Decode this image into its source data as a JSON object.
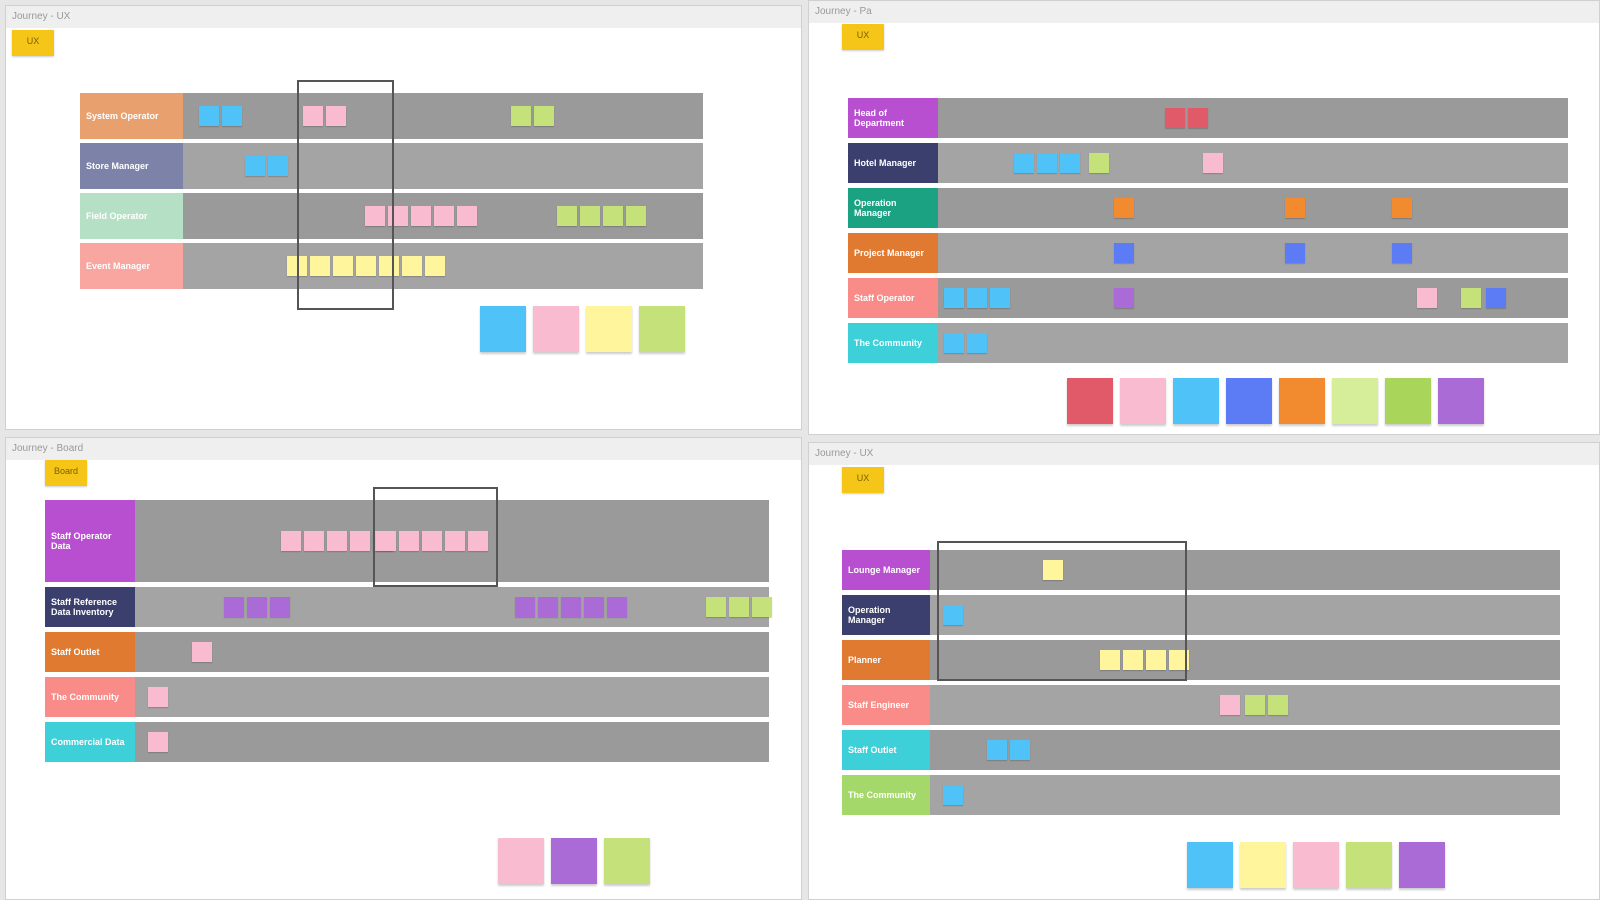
{
  "boards": [
    {
      "title": "Journey - UX",
      "tag": "UX",
      "lanes": [
        {
          "label": "System Operator",
          "color": "#e8a06e"
        },
        {
          "label": "Store Manager",
          "color": "#7c82a8"
        },
        {
          "label": "Field Operator",
          "color": "#b6e0c6"
        },
        {
          "label": "Event Manager",
          "color": "#f9a5a0"
        }
      ]
    },
    {
      "title": "Journey - Pa",
      "tag": "UX",
      "lanes": [
        {
          "label": "Head of Department",
          "color": "#b84fd0"
        },
        {
          "label": "Hotel Manager",
          "color": "#3b3f6e"
        },
        {
          "label": "Operation Manager",
          "color": "#1aa283"
        },
        {
          "label": "Project Manager",
          "color": "#e07a30"
        },
        {
          "label": "Staff Operator",
          "color": "#f98c88"
        },
        {
          "label": "The Community",
          "color": "#3ed0d8"
        }
      ]
    },
    {
      "title": "Journey - Board",
      "tag": "Board",
      "lanes": [
        {
          "label": "Staff Operator Data",
          "color": "#b84fd0"
        },
        {
          "label": "Staff Reference Data Inventory",
          "color": "#3b3f6e"
        },
        {
          "label": "Staff Outlet",
          "color": "#e07a30"
        },
        {
          "label": "The Community",
          "color": "#f98c88"
        },
        {
          "label": "Commercial Data",
          "color": "#3ed0d8"
        }
      ]
    },
    {
      "title": "Journey - UX",
      "tag": "UX",
      "lanes": [
        {
          "label": "Lounge Manager",
          "color": "#b84fd0"
        },
        {
          "label": "Operation Manager",
          "color": "#3b3f6e"
        },
        {
          "label": "Planner",
          "color": "#e07a30"
        },
        {
          "label": "Staff Engineer",
          "color": "#f98c88"
        },
        {
          "label": "Staff Outlet",
          "color": "#3ed0d8"
        },
        {
          "label": "The Community",
          "color": "#a5d86a"
        }
      ]
    }
  ]
}
